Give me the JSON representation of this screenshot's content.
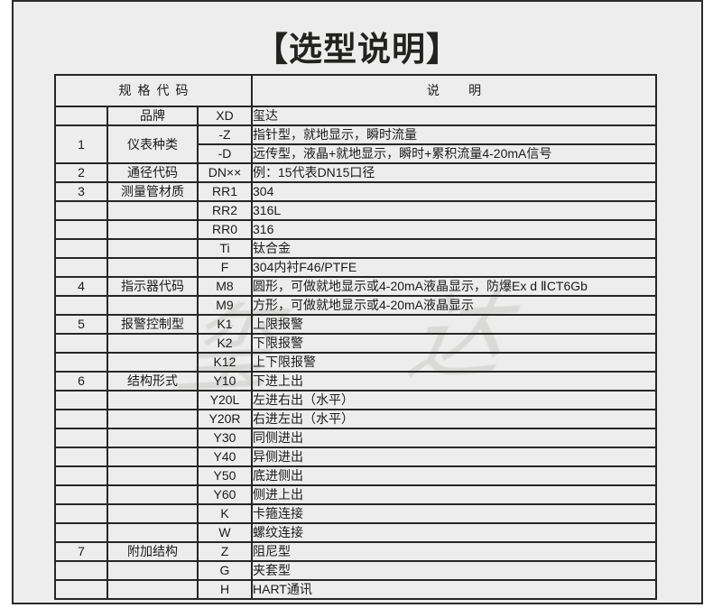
{
  "page": {
    "title": "【选型说明】"
  },
  "watermark": {
    "text": "玺达"
  },
  "table": {
    "header": {
      "spec_code_label": "规格代码",
      "description_label": "说明"
    },
    "rows": [
      {
        "num": "",
        "category": "品牌",
        "code": "XD",
        "desc": "玺达"
      },
      {
        "num": "1",
        "category": "仪表种类",
        "code": "-Z",
        "desc": "指针型，就地显示，瞬时流量",
        "group_span": 2
      },
      {
        "in_group": true,
        "code": "-D",
        "desc": "远传型，液晶+就地显示，瞬时+累积流量4-20mA信号"
      },
      {
        "num": "2",
        "category": "通径代码",
        "code": "DN××",
        "desc": "例：15代表DN15口径"
      },
      {
        "num": "3",
        "category": "测量管材质",
        "code": "RR1",
        "desc": "304"
      },
      {
        "num": "",
        "category": "",
        "code": "RR2",
        "desc": "316L"
      },
      {
        "num": "",
        "category": "",
        "code": "RR0",
        "desc": "316"
      },
      {
        "num": "",
        "category": "",
        "code": "Ti",
        "desc": "钛合金"
      },
      {
        "num": "",
        "category": "",
        "code": "F",
        "desc": "304内衬F46/PTFE"
      },
      {
        "num": "4",
        "category": "指示器代码",
        "code": "M8",
        "desc": "圆形，可做就地显示或4-20mA液晶显示，防爆Ex d ⅡCT6Gb"
      },
      {
        "num": "",
        "category": "",
        "code": "M9",
        "desc": "方形，可做就地显示或4-20mA液晶显示"
      },
      {
        "num": "5",
        "category": "报警控制型",
        "code": "K1",
        "desc": "上限报警"
      },
      {
        "num": "",
        "category": "",
        "code": "K2",
        "desc": "下限报警"
      },
      {
        "num": "",
        "category": "",
        "code": "K12",
        "desc": "上下限报警"
      },
      {
        "num": "6",
        "category": "结构形式",
        "code": "Y10",
        "desc": "下进上出"
      },
      {
        "num": "",
        "category": "",
        "code": "Y20L",
        "desc": "左进右出（水平）"
      },
      {
        "num": "",
        "category": "",
        "code": "Y20R",
        "desc": "右进左出（水平）"
      },
      {
        "num": "",
        "category": "",
        "code": "Y30",
        "desc": "同侧进出"
      },
      {
        "num": "",
        "category": "",
        "code": "Y40",
        "desc": "异侧进出"
      },
      {
        "num": "",
        "category": "",
        "code": "Y50",
        "desc": "底进侧出"
      },
      {
        "num": "",
        "category": "",
        "code": "Y60",
        "desc": "侧进上出"
      },
      {
        "num": "",
        "category": "",
        "code": "K",
        "desc": "卡箍连接"
      },
      {
        "num": "",
        "category": "",
        "code": "W",
        "desc": "螺纹连接"
      },
      {
        "num": "7",
        "category": "附加结构",
        "code": "Z",
        "desc": "阻尼型"
      },
      {
        "num": "",
        "category": "",
        "code": "G",
        "desc": "夹套型"
      },
      {
        "num": "",
        "category": "",
        "code": "H",
        "desc": "HART通讯"
      }
    ]
  }
}
